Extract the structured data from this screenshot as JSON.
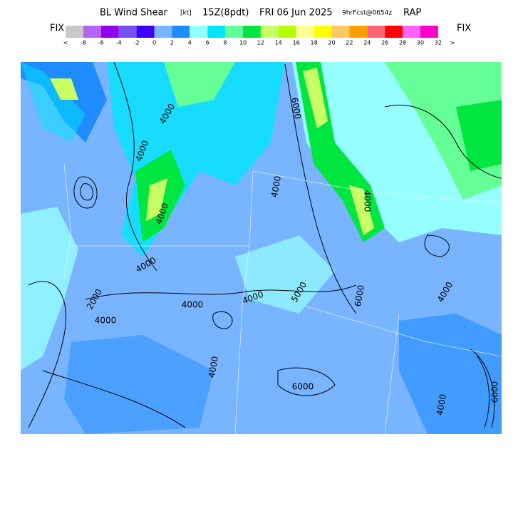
{
  "header": {
    "title": "BL Wind Shear",
    "units": "[kt]",
    "valid": "15Z(8pdt)",
    "date": "FRI 06 Jun 2025",
    "forecast": "9hrFcst@0654z",
    "model": "RAP",
    "fix_left": "FIX",
    "fix_right": "FIX"
  },
  "colorbar": {
    "colors": [
      "#c8c8c8",
      "#b464f0",
      "#9600f0",
      "#7850f0",
      "#3c00ff",
      "#78b4ff",
      "#1e8cff",
      "#96ffff",
      "#00e6ff",
      "#64ff96",
      "#00e641",
      "#c8ff64",
      "#b4ff00",
      "#ffff96",
      "#ffff00",
      "#ffc864",
      "#ffa000",
      "#ff6478",
      "#ff0000",
      "#ff64ff",
      "#ff00c8"
    ],
    "labels": [
      "<",
      -8,
      -6,
      -4,
      -2,
      0,
      2,
      4,
      6,
      8,
      10,
      12,
      14,
      16,
      18,
      20,
      22,
      24,
      26,
      28,
      30,
      32,
      ">"
    ]
  },
  "map": {
    "contour_labels": [
      "4000",
      "4000",
      "4000",
      "4000",
      "2000",
      "4000",
      "4000",
      "4000",
      "4000",
      "6000",
      "4000",
      "6000",
      "4000",
      "6000",
      "4000",
      "6000",
      "4000",
      "5000"
    ]
  }
}
